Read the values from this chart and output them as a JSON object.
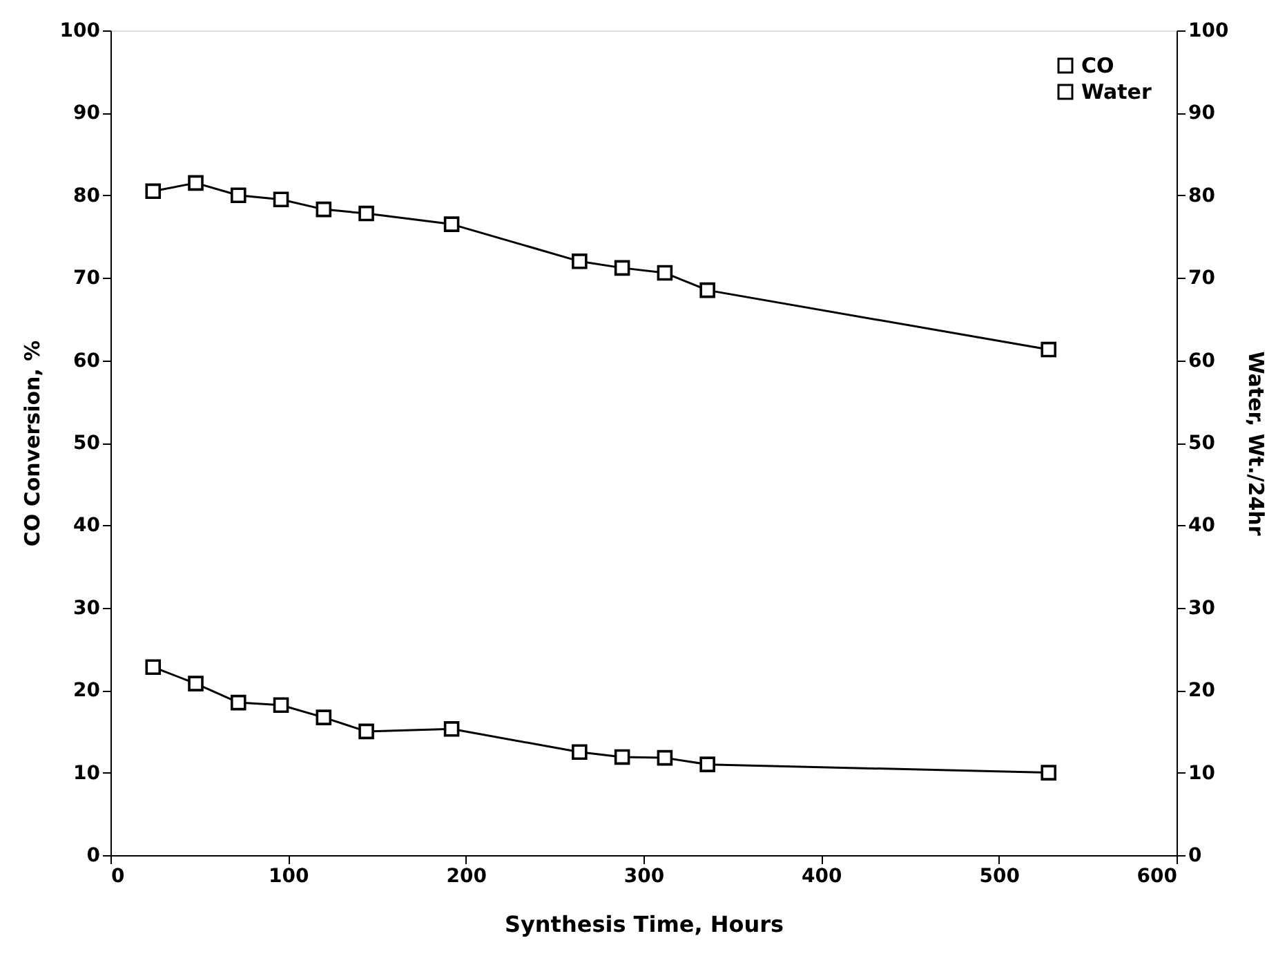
{
  "chart_data": {
    "type": "line",
    "xlabel": "Synthesis Time, Hours",
    "ylabel": "CO Conversion, %",
    "y2label": "Water, Wt./24hr",
    "x": [
      24,
      48,
      72,
      96,
      120,
      144,
      192,
      264,
      288,
      312,
      336,
      528
    ],
    "series": [
      {
        "name": "CO",
        "color": "#000000",
        "values": [
          80.5,
          81.5,
          80,
          79.5,
          78.3,
          77.8,
          76.5,
          72,
          71.2,
          70.6,
          68.5,
          61.3
        ]
      },
      {
        "name": "Water",
        "color": "#000000",
        "axis": "y2",
        "values": [
          22.8,
          20.8,
          18.5,
          18.2,
          16.7,
          15,
          15.3,
          12.5,
          11.9,
          11.8,
          11,
          10
        ]
      }
    ],
    "xlim": [
      0,
      600
    ],
    "xticks": [
      0,
      100,
      200,
      300,
      400,
      500,
      600
    ],
    "ylim": [
      0,
      100
    ],
    "yticks": [
      0,
      10,
      20,
      30,
      40,
      50,
      60,
      70,
      80,
      90,
      100
    ],
    "y2lim": [
      0,
      100
    ],
    "y2ticks": [
      0,
      10,
      20,
      30,
      40,
      50,
      60,
      70,
      80,
      90,
      100
    ],
    "legend": "top right",
    "grid": false,
    "marker": "square",
    "line_style": "solid"
  }
}
